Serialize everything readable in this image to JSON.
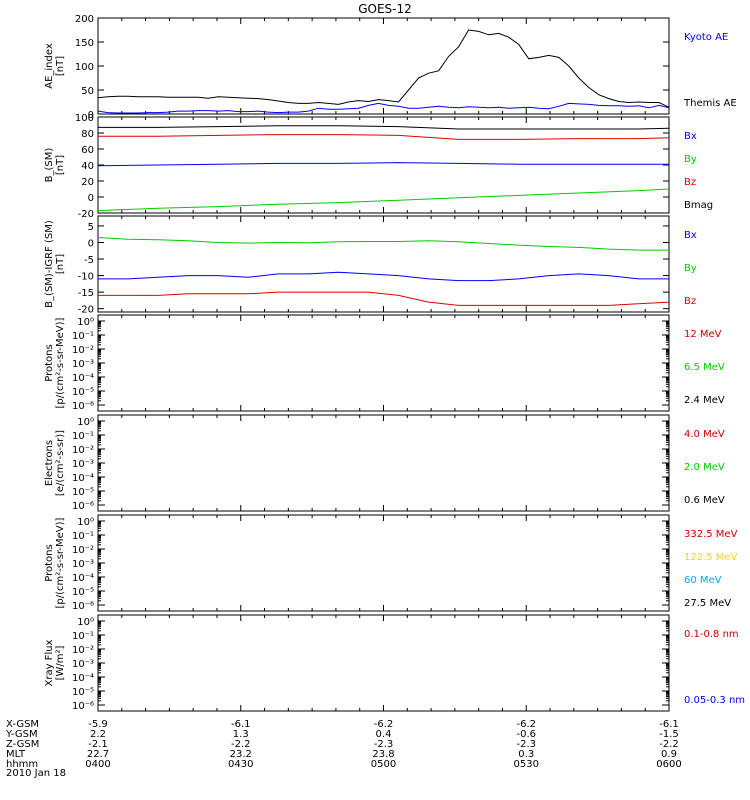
{
  "title": "GOES-12",
  "footer_date": "2010 Jan 18",
  "colors": {
    "black": "#000000",
    "blue": "#0000ff",
    "red": "#e00000",
    "green": "#00cc00",
    "darkred": "#cc0000",
    "yellow": "#ffd700",
    "cyan": "#00aaff"
  },
  "ephemeris": {
    "row_labels": [
      "X-GSM",
      "Y-GSM",
      "Z-GSM",
      "MLT",
      "hhmm"
    ],
    "columns": [
      [
        "-5.9",
        "2.2",
        "-2.1",
        "22.7",
        "0400"
      ],
      [
        "-6.1",
        "1.3",
        "-2.2",
        "23.2",
        "0430"
      ],
      [
        "-6.2",
        "0.4",
        "-2.3",
        "23.8",
        "0500"
      ],
      [
        "-6.2",
        "-0.6",
        "-2.3",
        "0.3",
        "0530"
      ],
      [
        "-6.1",
        "-1.5",
        "-2.2",
        "0.9",
        "0600"
      ]
    ]
  },
  "chart_data": [
    {
      "type": "line",
      "ylabel": [
        "AE_index",
        "[nT]"
      ],
      "yticks": [
        "0",
        "50",
        "100",
        "150",
        "200"
      ],
      "ylim": [
        0,
        200
      ],
      "log": false,
      "legend": [
        {
          "name": "Kyoto AE",
          "color": "#0000ff"
        },
        {
          "name": "Themis AE",
          "color": "#000000"
        }
      ],
      "series": [
        {
          "name": "Kyoto AE",
          "color": "#0000ff",
          "x": [
            0,
            10,
            20,
            30,
            40,
            50,
            60,
            70,
            80,
            90,
            100,
            110,
            120,
            130,
            140,
            150,
            160,
            170,
            180,
            190,
            200,
            210,
            220,
            230,
            240,
            250,
            260,
            270,
            280,
            290,
            300,
            310,
            320,
            330,
            340,
            350,
            360,
            370,
            380,
            390,
            400,
            410,
            420,
            430,
            440,
            450,
            460,
            470,
            480,
            490,
            500,
            510,
            520,
            530,
            540,
            550,
            560,
            570
          ],
          "y": [
            6,
            3,
            2,
            2,
            2,
            3,
            3,
            4,
            6,
            6,
            7,
            7,
            6,
            7,
            5,
            5,
            6,
            4,
            3,
            4,
            4,
            6,
            12,
            10,
            10,
            11,
            12,
            18,
            22,
            18,
            16,
            12,
            12,
            14,
            16,
            14,
            13,
            15,
            14,
            13,
            14,
            12,
            13,
            14,
            12,
            11,
            16,
            22,
            21,
            20,
            18,
            17,
            17,
            16,
            17,
            13,
            18,
            13
          ]
        },
        {
          "name": "Themis AE",
          "color": "#000000",
          "x": [
            0,
            10,
            20,
            30,
            40,
            50,
            60,
            70,
            80,
            90,
            100,
            110,
            120,
            130,
            140,
            150,
            160,
            170,
            180,
            190,
            200,
            210,
            220,
            230,
            240,
            250,
            260,
            270,
            280,
            290,
            300,
            310,
            320,
            330,
            340,
            350,
            360,
            370,
            380,
            390,
            400,
            410,
            420,
            430,
            440,
            450,
            460,
            470,
            480,
            490,
            500,
            510,
            520,
            530,
            540,
            550,
            560,
            570
          ],
          "y": [
            34,
            36,
            37,
            37,
            36,
            36,
            36,
            35,
            35,
            35,
            35,
            33,
            36,
            35,
            34,
            33,
            32,
            30,
            27,
            24,
            22,
            22,
            24,
            22,
            20,
            25,
            28,
            26,
            30,
            28,
            25,
            50,
            75,
            85,
            90,
            120,
            140,
            175,
            172,
            165,
            168,
            160,
            145,
            115,
            118,
            122,
            118,
            100,
            75,
            55,
            40,
            32,
            26,
            24,
            25,
            24,
            24,
            14
          ]
        }
      ]
    },
    {
      "type": "line",
      "ylabel": [
        "B_(SM)",
        "[nT]"
      ],
      "yticks": [
        "-20",
        "0",
        "20",
        "40",
        "60",
        "80",
        "100"
      ],
      "ylim": [
        -20,
        100
      ],
      "log": false,
      "legend": [
        {
          "name": "Bx",
          "color": "#0000ff"
        },
        {
          "name": "By",
          "color": "#00cc00"
        },
        {
          "name": "Bz",
          "color": "#e00000"
        },
        {
          "name": "Bmag",
          "color": "#000000"
        }
      ],
      "series": [
        {
          "name": "Bmag",
          "color": "#000000",
          "x": [
            0,
            60,
            120,
            180,
            240,
            300,
            360,
            420,
            480,
            540,
            570
          ],
          "y": [
            87,
            87,
            88,
            89,
            89,
            88,
            85,
            85,
            85,
            85,
            86
          ]
        },
        {
          "name": "Bz",
          "color": "#e00000",
          "x": [
            0,
            60,
            120,
            180,
            240,
            300,
            360,
            420,
            480,
            540,
            570
          ],
          "y": [
            76,
            76,
            77,
            78,
            78,
            77,
            72,
            72,
            73,
            73,
            74
          ]
        },
        {
          "name": "Bx",
          "color": "#0000ff",
          "x": [
            0,
            60,
            120,
            180,
            240,
            300,
            360,
            420,
            480,
            540,
            570
          ],
          "y": [
            39,
            40,
            41,
            42,
            42,
            43,
            42,
            41,
            41,
            41,
            41
          ]
        },
        {
          "name": "By",
          "color": "#00cc00",
          "x": [
            0,
            60,
            120,
            180,
            240,
            300,
            360,
            420,
            480,
            540,
            570
          ],
          "y": [
            -17,
            -14,
            -12,
            -9,
            -7,
            -4,
            -1,
            2,
            5,
            8,
            10
          ]
        }
      ]
    },
    {
      "type": "line",
      "ylabel": [
        "B_(SM)-IGRF (SM)",
        "[nT]"
      ],
      "yticks": [
        "-20",
        "-15",
        "-10",
        "-5",
        "0",
        "5"
      ],
      "ylim": [
        -21,
        8
      ],
      "log": false,
      "legend": [
        {
          "name": "Bx",
          "color": "#0000ff"
        },
        {
          "name": "By",
          "color": "#00cc00"
        },
        {
          "name": "Bz",
          "color": "#e00000"
        }
      ],
      "series": [
        {
          "name": "By",
          "color": "#00cc00",
          "x": [
            0,
            30,
            60,
            90,
            120,
            150,
            180,
            210,
            240,
            270,
            300,
            330,
            360,
            390,
            420,
            450,
            480,
            510,
            540,
            570
          ],
          "y": [
            1.5,
            1,
            0.8,
            0.5,
            0,
            -0.2,
            0,
            -0.1,
            0.2,
            0.3,
            0.3,
            0.5,
            0.2,
            -0.3,
            -0.8,
            -1.2,
            -1.5,
            -2,
            -2.3,
            -2.3
          ]
        },
        {
          "name": "Bx",
          "color": "#0000ff",
          "x": [
            0,
            30,
            60,
            90,
            120,
            150,
            180,
            210,
            240,
            270,
            300,
            330,
            360,
            390,
            420,
            450,
            480,
            510,
            540,
            570
          ],
          "y": [
            -11,
            -11,
            -10.5,
            -10,
            -10,
            -10.5,
            -9.5,
            -9.5,
            -9,
            -9.5,
            -10,
            -11,
            -11.5,
            -11.5,
            -11,
            -10,
            -9.5,
            -10,
            -11,
            -11
          ]
        },
        {
          "name": "Bz",
          "color": "#e00000",
          "x": [
            0,
            30,
            60,
            90,
            120,
            150,
            180,
            210,
            240,
            270,
            300,
            330,
            360,
            390,
            420,
            450,
            480,
            510,
            540,
            570
          ],
          "y": [
            -16,
            -16,
            -16,
            -15.5,
            -15.5,
            -15.5,
            -15,
            -15,
            -15,
            -15,
            -16,
            -18,
            -19,
            -19,
            -19,
            -19,
            -19,
            -19,
            -18.5,
            -18
          ]
        }
      ]
    },
    {
      "type": "line",
      "ylabel": [
        "Protons",
        "[p/(cm²-s-sr-MeV)]"
      ],
      "yticks": [
        "10⁰",
        "10⁻¹",
        "10⁻²",
        "10⁻³",
        "10⁻⁴",
        "10⁻⁵",
        "10⁻⁶"
      ],
      "log": true,
      "legend": [
        {
          "name": "12 MeV",
          "color": "#cc0000"
        },
        {
          "name": "6.5 MeV",
          "color": "#00cc00"
        },
        {
          "name": "2.4 MeV",
          "color": "#000000"
        }
      ],
      "series": []
    },
    {
      "type": "line",
      "ylabel": [
        "Electrons",
        "[e/(cm²-s-sr)]"
      ],
      "yticks": [
        "10⁰",
        "10⁻¹",
        "10⁻²",
        "10⁻³",
        "10⁻⁴",
        "10⁻⁵",
        "10⁻⁶"
      ],
      "log": true,
      "legend": [
        {
          "name": "4.0 MeV",
          "color": "#cc0000"
        },
        {
          "name": "2.0 MeV",
          "color": "#00cc00"
        },
        {
          "name": "0.6 MeV",
          "color": "#000000"
        }
      ],
      "series": []
    },
    {
      "type": "line",
      "ylabel": [
        "Protons",
        "[p/(cm²-s-sr-MeV)]"
      ],
      "yticks": [
        "10⁰",
        "10⁻¹",
        "10⁻²",
        "10⁻³",
        "10⁻⁴",
        "10⁻⁵",
        "10⁻⁶"
      ],
      "log": true,
      "legend": [
        {
          "name": "332.5 MeV",
          "color": "#cc0000"
        },
        {
          "name": "122.5 MeV",
          "color": "#ffd700"
        },
        {
          "name": "60 MeV",
          "color": "#00aaff"
        },
        {
          "name": "27.5 MeV",
          "color": "#000000"
        }
      ],
      "series": []
    },
    {
      "type": "line",
      "ylabel": [
        "Xray Flux",
        "[W/m²]"
      ],
      "yticks": [
        "10⁰",
        "10⁻¹",
        "10⁻²",
        "10⁻³",
        "10⁻⁴",
        "10⁻⁵",
        "10⁻⁶"
      ],
      "log": true,
      "legend": [
        {
          "name": "0.1-0.8 nm",
          "color": "#cc0000"
        },
        {
          "name": "0.05-0.3 nm",
          "color": "#0000ff"
        }
      ],
      "series": []
    }
  ]
}
